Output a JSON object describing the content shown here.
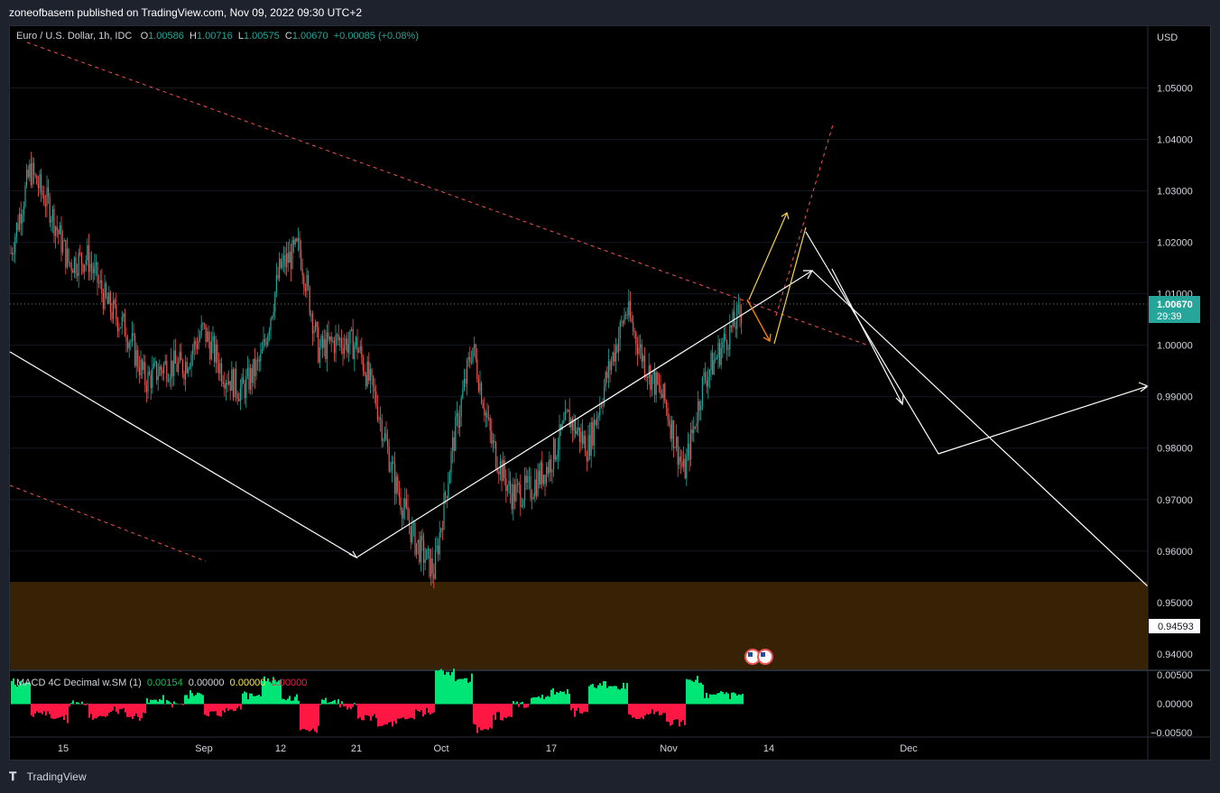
{
  "header": {
    "publish_info": "zoneofbasem published on TradingView.com, Nov 09, 2022 09:30 UTC+2"
  },
  "legend": {
    "symbol": "Euro / U.S. Dollar, 1h, IDC",
    "open_label": "O",
    "open": "1.00586",
    "high_label": "H",
    "high": "1.00716",
    "low_label": "L",
    "low": "1.00575",
    "close_label": "C",
    "close": "1.00670",
    "change": "+0.00085 (+0.08%)"
  },
  "price_axis": {
    "currency": "USD",
    "ticks": [
      "1.05000",
      "1.04000",
      "1.03000",
      "1.02000",
      "1.01000",
      "1.00000",
      "0.99000",
      "0.98000",
      "0.97000",
      "0.96000",
      "0.95000",
      "0.94000"
    ],
    "current_price": "1.00670",
    "countdown": "29:39",
    "zone_label": "0.94593",
    "current_price_color": "#26a69a"
  },
  "time_axis": {
    "labels": [
      "15",
      "Sep",
      "12",
      "21",
      "Oct",
      "17",
      "Nov",
      "14",
      "Dec"
    ]
  },
  "macd": {
    "title": "MACD 4C Decimal w.SM (1)",
    "v1": "0.00154",
    "v2": "0.00000",
    "v3": "0.00000",
    "v4": "0.00000",
    "axis_ticks": [
      "0.00500",
      "0.00000",
      "−0.00500"
    ]
  },
  "footer": {
    "brand": "TradingView"
  },
  "colors": {
    "up": "#26a69a",
    "down": "#ef5350",
    "zone": "#3a2406",
    "trendline_red": "#ef5350",
    "arrow_white": "#ffffff",
    "arrow_yellow": "#f5d34a",
    "arrow_orange": "#f57c00"
  },
  "chart_data": {
    "type": "candlestick",
    "instrument": "Euro / U.S. Dollar",
    "interval": "1h",
    "y_range": [
      0.937,
      1.062
    ],
    "close_path": [
      {
        "x": "Aug 10",
        "y": 1.018
      },
      {
        "x": "Aug 11",
        "y": 1.034
      },
      {
        "x": "Aug 12",
        "y": 1.027
      },
      {
        "x": "Aug 15",
        "y": 1.016
      },
      {
        "x": "Aug 16",
        "y": 1.017
      },
      {
        "x": "Aug 18",
        "y": 1.008
      },
      {
        "x": "Aug 19",
        "y": 1.003
      },
      {
        "x": "Aug 22",
        "y": 0.993
      },
      {
        "x": "Aug 24",
        "y": 0.996
      },
      {
        "x": "Aug 26",
        "y": 0.996
      },
      {
        "x": "Sep 1",
        "y": 1.003
      },
      {
        "x": "Sep 2",
        "y": 0.995
      },
      {
        "x": "Sep 5",
        "y": 0.991
      },
      {
        "x": "Sep 6",
        "y": 0.997
      },
      {
        "x": "Sep 12",
        "y": 1.015
      },
      {
        "x": "Sep 13",
        "y": 1.019
      },
      {
        "x": "Sep 15",
        "y": 0.999
      },
      {
        "x": "Sep 19",
        "y": 1.001
      },
      {
        "x": "Sep 20",
        "y": 1.0
      },
      {
        "x": "Sep 21",
        "y": 0.989
      },
      {
        "x": "Sep 23",
        "y": 0.973
      },
      {
        "x": "Sep 26",
        "y": 0.962
      },
      {
        "x": "Sep 28",
        "y": 0.956
      },
      {
        "x": "Sep 30",
        "y": 0.981
      },
      {
        "x": "Oct 4",
        "y": 1.0
      },
      {
        "x": "Oct 6",
        "y": 0.981
      },
      {
        "x": "Oct 10",
        "y": 0.971
      },
      {
        "x": "Oct 12",
        "y": 0.972
      },
      {
        "x": "Oct 14",
        "y": 0.977
      },
      {
        "x": "Oct 17",
        "y": 0.986
      },
      {
        "x": "Oct 21",
        "y": 0.98
      },
      {
        "x": "Oct 25",
        "y": 0.994
      },
      {
        "x": "Oct 27",
        "y": 1.007
      },
      {
        "x": "Oct 28",
        "y": 0.996
      },
      {
        "x": "Nov 1",
        "y": 0.989
      },
      {
        "x": "Nov 3",
        "y": 0.975
      },
      {
        "x": "Nov 4",
        "y": 0.993
      },
      {
        "x": "Nov 7",
        "y": 1.0
      },
      {
        "x": "Nov 9",
        "y": 1.0067
      }
    ],
    "support_zone": [
      0.937,
      0.95
    ],
    "macd_y_range": [
      -0.006,
      0.006
    ],
    "annotations": [
      "descending red dashed trendline",
      "ascending white trendline",
      "projected white and yellow arrows"
    ]
  }
}
